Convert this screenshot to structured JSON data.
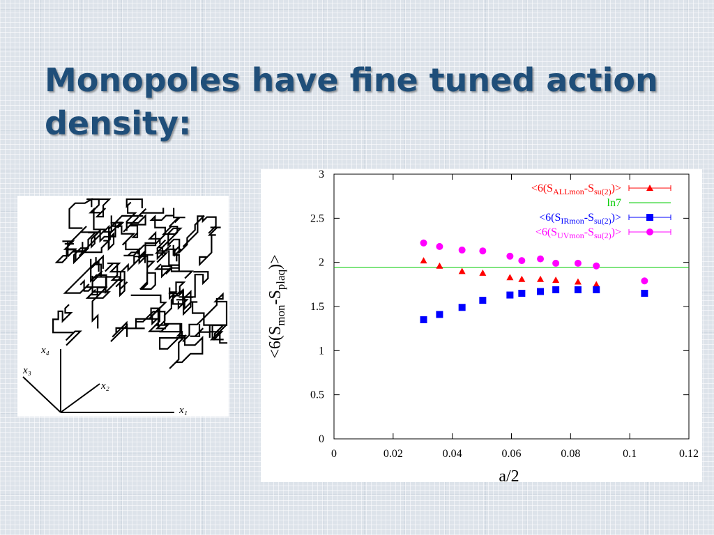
{
  "slide": {
    "title": "Monopoles have fine tuned action density:"
  },
  "figure_left": {
    "axis_labels": [
      "x₁",
      "x₂",
      "x₃",
      "x₄"
    ]
  },
  "chart_data": {
    "type": "scatter",
    "xlabel": "a/2",
    "ylabel": {
      "prefix": "<6(S",
      "sub1": "mon",
      "mid": "-S",
      "sub2": "plaq",
      "suffix": ")>"
    },
    "xlim": [
      0,
      0.12
    ],
    "ylim": [
      0,
      3
    ],
    "xticks": [
      "0",
      "0.02",
      "0.04",
      "0.06",
      "0.08",
      "0.1",
      "0.12"
    ],
    "xtick_values": [
      0,
      0.02,
      0.04,
      0.06,
      0.08,
      0.1,
      0.12
    ],
    "yticks": [
      "0",
      "0.5",
      "1",
      "1.5",
      "2",
      "2.5",
      "3"
    ],
    "ytick_values": [
      0,
      0.5,
      1,
      1.5,
      2,
      2.5,
      3
    ],
    "grid": false,
    "legend_position": "top-right",
    "colors": {
      "all": "#ff0000",
      "ln7": "#00cc00",
      "ir": "#0000ff",
      "uv": "#ff00ff"
    },
    "series": [
      {
        "key": "all",
        "marker": "triangle",
        "label": {
          "prefix": "<6(S",
          "sub1": "ALLmon",
          "mid": "-S",
          "sub2": "su(2)",
          "suffix": ")>"
        },
        "x": [
          0.0303,
          0.0357,
          0.0433,
          0.0503,
          0.0595,
          0.0635,
          0.0698,
          0.075,
          0.0825,
          0.0887
        ],
        "y": [
          2.02,
          1.96,
          1.9,
          1.88,
          1.83,
          1.81,
          1.81,
          1.8,
          1.78,
          1.75
        ]
      },
      {
        "key": "ir",
        "marker": "square",
        "label": {
          "prefix": "<6(S",
          "sub1": "IRmon",
          "mid": "-S",
          "sub2": "su(2)",
          "suffix": ")>"
        },
        "x": [
          0.0303,
          0.0357,
          0.0433,
          0.0503,
          0.0595,
          0.0635,
          0.0698,
          0.075,
          0.0825,
          0.0887,
          0.105
        ],
        "y": [
          1.35,
          1.41,
          1.49,
          1.57,
          1.63,
          1.65,
          1.67,
          1.69,
          1.69,
          1.69,
          1.65
        ]
      },
      {
        "key": "uv",
        "marker": "circle",
        "label": {
          "prefix": "<6(S",
          "sub1": "UVmon",
          "mid": "-S",
          "sub2": "su(2)",
          "suffix": ")>"
        },
        "x": [
          0.0303,
          0.0357,
          0.0433,
          0.0503,
          0.0595,
          0.0635,
          0.0698,
          0.075,
          0.0825,
          0.0887,
          0.105
        ],
        "y": [
          2.22,
          2.18,
          2.14,
          2.13,
          2.07,
          2.02,
          2.04,
          1.99,
          1.99,
          1.96,
          1.79
        ]
      }
    ],
    "reference_line": {
      "key": "ln7",
      "label": "ln7",
      "y": 1.946
    }
  }
}
